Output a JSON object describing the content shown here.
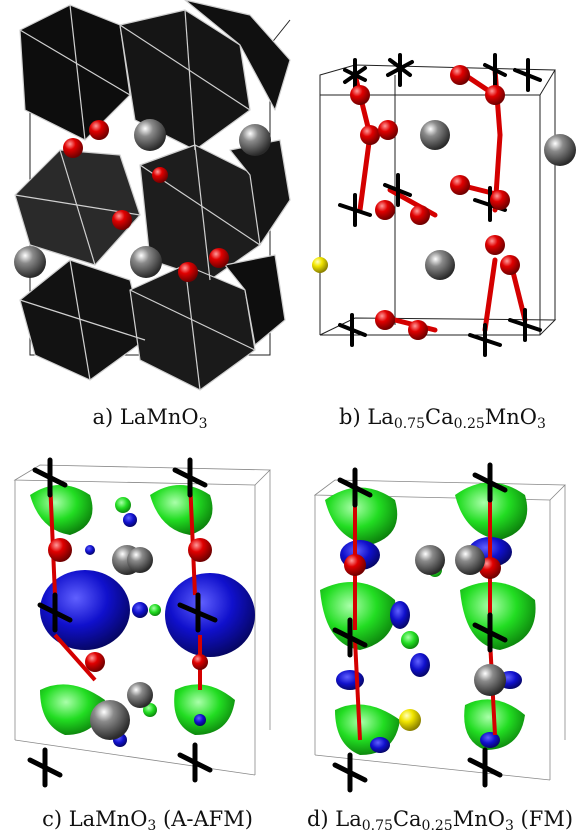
{
  "panels": [
    {
      "id": "a",
      "caption_parts": [
        "a) LaMnO",
        "3",
        ""
      ]
    },
    {
      "id": "b",
      "caption_parts": [
        "b) La",
        "0.75",
        "Ca",
        "0.25",
        "MnO",
        "3"
      ]
    },
    {
      "id": "c",
      "caption_parts": [
        "c) LaMnO",
        "3",
        " (A-AFM)"
      ]
    },
    {
      "id": "d",
      "caption_parts": [
        "d) La",
        "0.75",
        "Ca",
        "0.25",
        "MnO",
        "3",
        " (FM)"
      ]
    }
  ],
  "colors": {
    "octahedron": "#111111",
    "octahedron_edge": "#cfcfcf",
    "oxygen": "#d40000",
    "lanthanum": "#6e6e6e",
    "calcium": "#f2e600",
    "manganese": "#000000",
    "isosurface_positive": "#22dd22",
    "isosurface_negative": "#1010cc"
  }
}
